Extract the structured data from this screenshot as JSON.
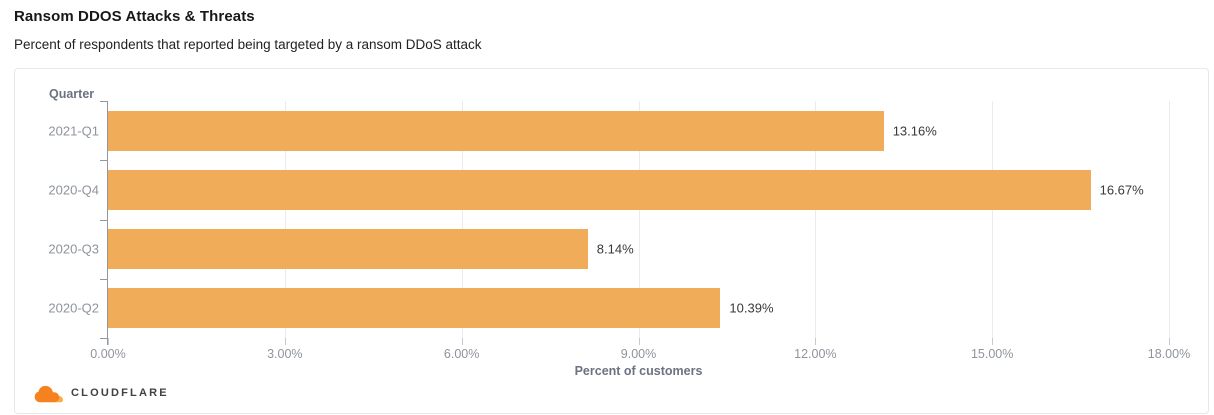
{
  "header": {
    "title": "Ransom DDOS Attacks & Threats",
    "subtitle": "Percent of respondents that reported being targeted by a ransom DDoS attack"
  },
  "chart_data": {
    "type": "bar",
    "orientation": "horizontal",
    "title": "Ransom DDOS Attacks & Threats",
    "subtitle": "Percent of respondents that reported being targeted by a ransom DDoS attack",
    "y_axis_title": "Quarter",
    "xlabel": "Percent of customers",
    "categories": [
      "2021-Q1",
      "2020-Q4",
      "2020-Q3",
      "2020-Q2"
    ],
    "values": [
      13.16,
      16.67,
      8.14,
      10.39
    ],
    "value_labels": [
      "13.16%",
      "16.67%",
      "8.14%",
      "10.39%"
    ],
    "xlim": [
      0,
      18
    ],
    "xticks": [
      0,
      3,
      6,
      9,
      12,
      15,
      18
    ],
    "xtick_labels": [
      "0.00%",
      "3.00%",
      "6.00%",
      "9.00%",
      "12.00%",
      "15.00%",
      "18.00%"
    ],
    "grid": "vertical",
    "legend_position": "none",
    "bar_color": "#F0AC58"
  },
  "footer": {
    "brand": "CLOUDFLARE",
    "logo_color_dark": "#F6821F",
    "logo_color_light": "#FBAD41",
    "brand_text_color": "#404041"
  }
}
